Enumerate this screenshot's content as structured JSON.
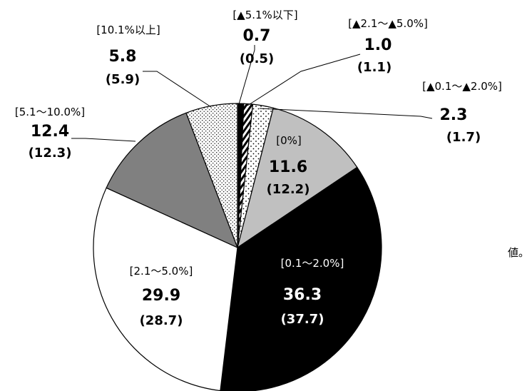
{
  "side_note": "値。",
  "chart_data": {
    "type": "pie",
    "start_angle_deg": 0,
    "direction": "clockwise",
    "legend": "none",
    "slices": [
      {
        "label": "[▲5.1%以下]",
        "value": 0.7,
        "prev": "(0.5)",
        "fill": "solid-dark"
      },
      {
        "label": "[▲2.1～▲5.0%]",
        "value": 1.0,
        "prev": "(1.1)",
        "fill": "hatch"
      },
      {
        "label": "[▲0.1～▲2.0%]",
        "value": 2.3,
        "prev": "(1.7)",
        "fill": "dots-sparse"
      },
      {
        "label": "[0%]",
        "value": 11.6,
        "prev": "(12.2)",
        "fill": "light-gray"
      },
      {
        "label": "[0.1～2.0%]",
        "value": 36.3,
        "prev": "(37.7)",
        "fill": "black"
      },
      {
        "label": "[2.1～5.0%]",
        "value": 29.9,
        "prev": "(28.7)",
        "fill": "white"
      },
      {
        "label": "[5.1～10.0%]",
        "value": 12.4,
        "prev": "(12.3)",
        "fill": "dark-gray"
      },
      {
        "label": "[10.1%以上]",
        "value": 5.8,
        "prev": "(5.9)",
        "fill": "dots-dense"
      }
    ],
    "display": {
      "s0": {
        "label": "[▲5.1%以下]",
        "value": "0.7",
        "prev": "(0.5)"
      },
      "s1": {
        "label": "[▲2.1～▲5.0%]",
        "value": "1.0",
        "prev": "(1.1)"
      },
      "s2": {
        "label": "[▲0.1～▲2.0%]",
        "value": "2.3",
        "prev": "(1.7)"
      },
      "s3": {
        "label": "[0%]",
        "value": "11.6",
        "prev": "(12.2)"
      },
      "s4": {
        "label": "[0.1～2.0%]",
        "value": "36.3",
        "prev": "(37.7)"
      },
      "s5": {
        "label": "[2.1～5.0%]",
        "value": "29.9",
        "prev": "(28.7)"
      },
      "s6": {
        "label": "[5.1～10.0%]",
        "value": "12.4",
        "prev": "(12.3)"
      },
      "s7": {
        "label": "[10.1%以上]",
        "value": "5.8",
        "prev": "(5.9)"
      }
    },
    "colors": {
      "black": "#000000",
      "white": "#ffffff",
      "light-gray": "#c0c0c0",
      "dark-gray": "#808080",
      "stroke": "#000000"
    }
  }
}
